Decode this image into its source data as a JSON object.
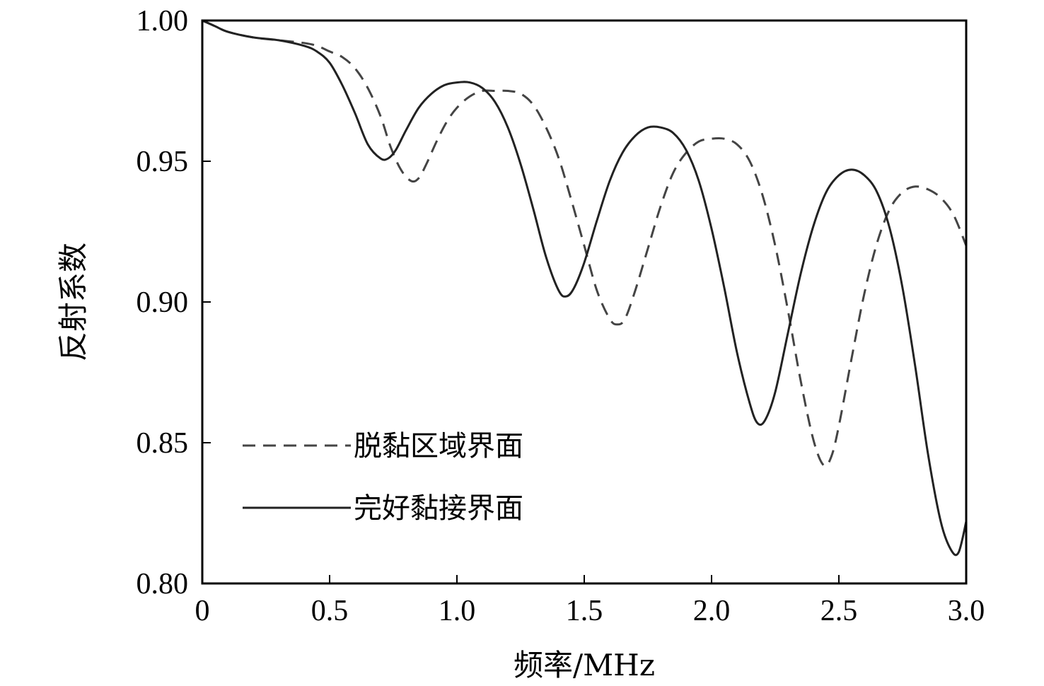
{
  "chart_data": {
    "type": "line",
    "title": "",
    "xlabel": "频率/MHz",
    "ylabel": "反射系数",
    "xlim": [
      0,
      3.0
    ],
    "ylim": [
      0.8,
      1.0
    ],
    "x_ticks": [
      {
        "value": 0,
        "label": "0"
      },
      {
        "value": 0.5,
        "label": "0.5"
      },
      {
        "value": 1.0,
        "label": "1.0"
      },
      {
        "value": 1.5,
        "label": "1.5"
      },
      {
        "value": 2.0,
        "label": "2.0"
      },
      {
        "value": 2.5,
        "label": "2.5"
      },
      {
        "value": 3.0,
        "label": "3.0"
      }
    ],
    "y_ticks": [
      {
        "value": 0.8,
        "label": "0.80"
      },
      {
        "value": 0.85,
        "label": "0.85"
      },
      {
        "value": 0.9,
        "label": "0.90"
      },
      {
        "value": 0.95,
        "label": "0.95"
      },
      {
        "value": 1.0,
        "label": "1.00"
      }
    ],
    "grid": false,
    "legend_position": "lower-left",
    "series": [
      {
        "name": "脱黏区域界面",
        "style": "dashed",
        "color": "#444444",
        "points": [
          [
            0.0,
            1.0
          ],
          [
            0.05,
            0.998
          ],
          [
            0.1,
            0.996
          ],
          [
            0.2,
            0.994
          ],
          [
            0.3,
            0.993
          ],
          [
            0.4,
            0.992
          ],
          [
            0.45,
            0.991
          ],
          [
            0.5,
            0.989
          ],
          [
            0.55,
            0.987
          ],
          [
            0.6,
            0.983
          ],
          [
            0.65,
            0.976
          ],
          [
            0.7,
            0.966
          ],
          [
            0.74,
            0.955
          ],
          [
            0.78,
            0.947
          ],
          [
            0.82,
            0.943
          ],
          [
            0.85,
            0.944
          ],
          [
            0.88,
            0.949
          ],
          [
            0.92,
            0.957
          ],
          [
            0.96,
            0.964
          ],
          [
            1.0,
            0.969
          ],
          [
            1.05,
            0.973
          ],
          [
            1.1,
            0.975
          ],
          [
            1.15,
            0.975
          ],
          [
            1.2,
            0.975
          ],
          [
            1.25,
            0.974
          ],
          [
            1.3,
            0.97
          ],
          [
            1.35,
            0.962
          ],
          [
            1.4,
            0.951
          ],
          [
            1.45,
            0.936
          ],
          [
            1.5,
            0.92
          ],
          [
            1.55,
            0.904
          ],
          [
            1.6,
            0.894
          ],
          [
            1.63,
            0.892
          ],
          [
            1.66,
            0.894
          ],
          [
            1.7,
            0.904
          ],
          [
            1.75,
            0.919
          ],
          [
            1.8,
            0.934
          ],
          [
            1.85,
            0.946
          ],
          [
            1.9,
            0.953
          ],
          [
            1.95,
            0.957
          ],
          [
            2.0,
            0.958
          ],
          [
            2.05,
            0.958
          ],
          [
            2.1,
            0.956
          ],
          [
            2.15,
            0.95
          ],
          [
            2.2,
            0.938
          ],
          [
            2.25,
            0.92
          ],
          [
            2.3,
            0.897
          ],
          [
            2.35,
            0.872
          ],
          [
            2.4,
            0.851
          ],
          [
            2.44,
            0.842
          ],
          [
            2.47,
            0.845
          ],
          [
            2.5,
            0.856
          ],
          [
            2.55,
            0.88
          ],
          [
            2.6,
            0.903
          ],
          [
            2.65,
            0.921
          ],
          [
            2.7,
            0.933
          ],
          [
            2.75,
            0.939
          ],
          [
            2.8,
            0.941
          ],
          [
            2.85,
            0.94
          ],
          [
            2.9,
            0.937
          ],
          [
            2.95,
            0.931
          ],
          [
            3.0,
            0.92
          ]
        ]
      },
      {
        "name": "完好黏接界面",
        "style": "solid",
        "color": "#222222",
        "points": [
          [
            0.0,
            1.0
          ],
          [
            0.05,
            0.998
          ],
          [
            0.1,
            0.996
          ],
          [
            0.2,
            0.994
          ],
          [
            0.3,
            0.993
          ],
          [
            0.4,
            0.991
          ],
          [
            0.45,
            0.989
          ],
          [
            0.5,
            0.985
          ],
          [
            0.55,
            0.977
          ],
          [
            0.6,
            0.967
          ],
          [
            0.65,
            0.956
          ],
          [
            0.7,
            0.951
          ],
          [
            0.73,
            0.951
          ],
          [
            0.76,
            0.954
          ],
          [
            0.8,
            0.961
          ],
          [
            0.85,
            0.969
          ],
          [
            0.9,
            0.974
          ],
          [
            0.95,
            0.977
          ],
          [
            1.0,
            0.978
          ],
          [
            1.05,
            0.978
          ],
          [
            1.1,
            0.976
          ],
          [
            1.15,
            0.971
          ],
          [
            1.2,
            0.962
          ],
          [
            1.25,
            0.949
          ],
          [
            1.3,
            0.933
          ],
          [
            1.35,
            0.916
          ],
          [
            1.4,
            0.904
          ],
          [
            1.43,
            0.902
          ],
          [
            1.46,
            0.905
          ],
          [
            1.5,
            0.914
          ],
          [
            1.55,
            0.929
          ],
          [
            1.6,
            0.943
          ],
          [
            1.65,
            0.953
          ],
          [
            1.7,
            0.959
          ],
          [
            1.75,
            0.962
          ],
          [
            1.8,
            0.962
          ],
          [
            1.85,
            0.96
          ],
          [
            1.9,
            0.954
          ],
          [
            1.95,
            0.943
          ],
          [
            2.0,
            0.926
          ],
          [
            2.05,
            0.905
          ],
          [
            2.1,
            0.882
          ],
          [
            2.15,
            0.864
          ],
          [
            2.18,
            0.857
          ],
          [
            2.21,
            0.858
          ],
          [
            2.25,
            0.868
          ],
          [
            2.3,
            0.889
          ],
          [
            2.35,
            0.91
          ],
          [
            2.4,
            0.927
          ],
          [
            2.45,
            0.939
          ],
          [
            2.5,
            0.945
          ],
          [
            2.55,
            0.947
          ],
          [
            2.6,
            0.945
          ],
          [
            2.65,
            0.939
          ],
          [
            2.7,
            0.926
          ],
          [
            2.75,
            0.905
          ],
          [
            2.8,
            0.877
          ],
          [
            2.85,
            0.846
          ],
          [
            2.9,
            0.822
          ],
          [
            2.94,
            0.812
          ],
          [
            2.97,
            0.811
          ],
          [
            3.0,
            0.822
          ]
        ]
      }
    ]
  }
}
